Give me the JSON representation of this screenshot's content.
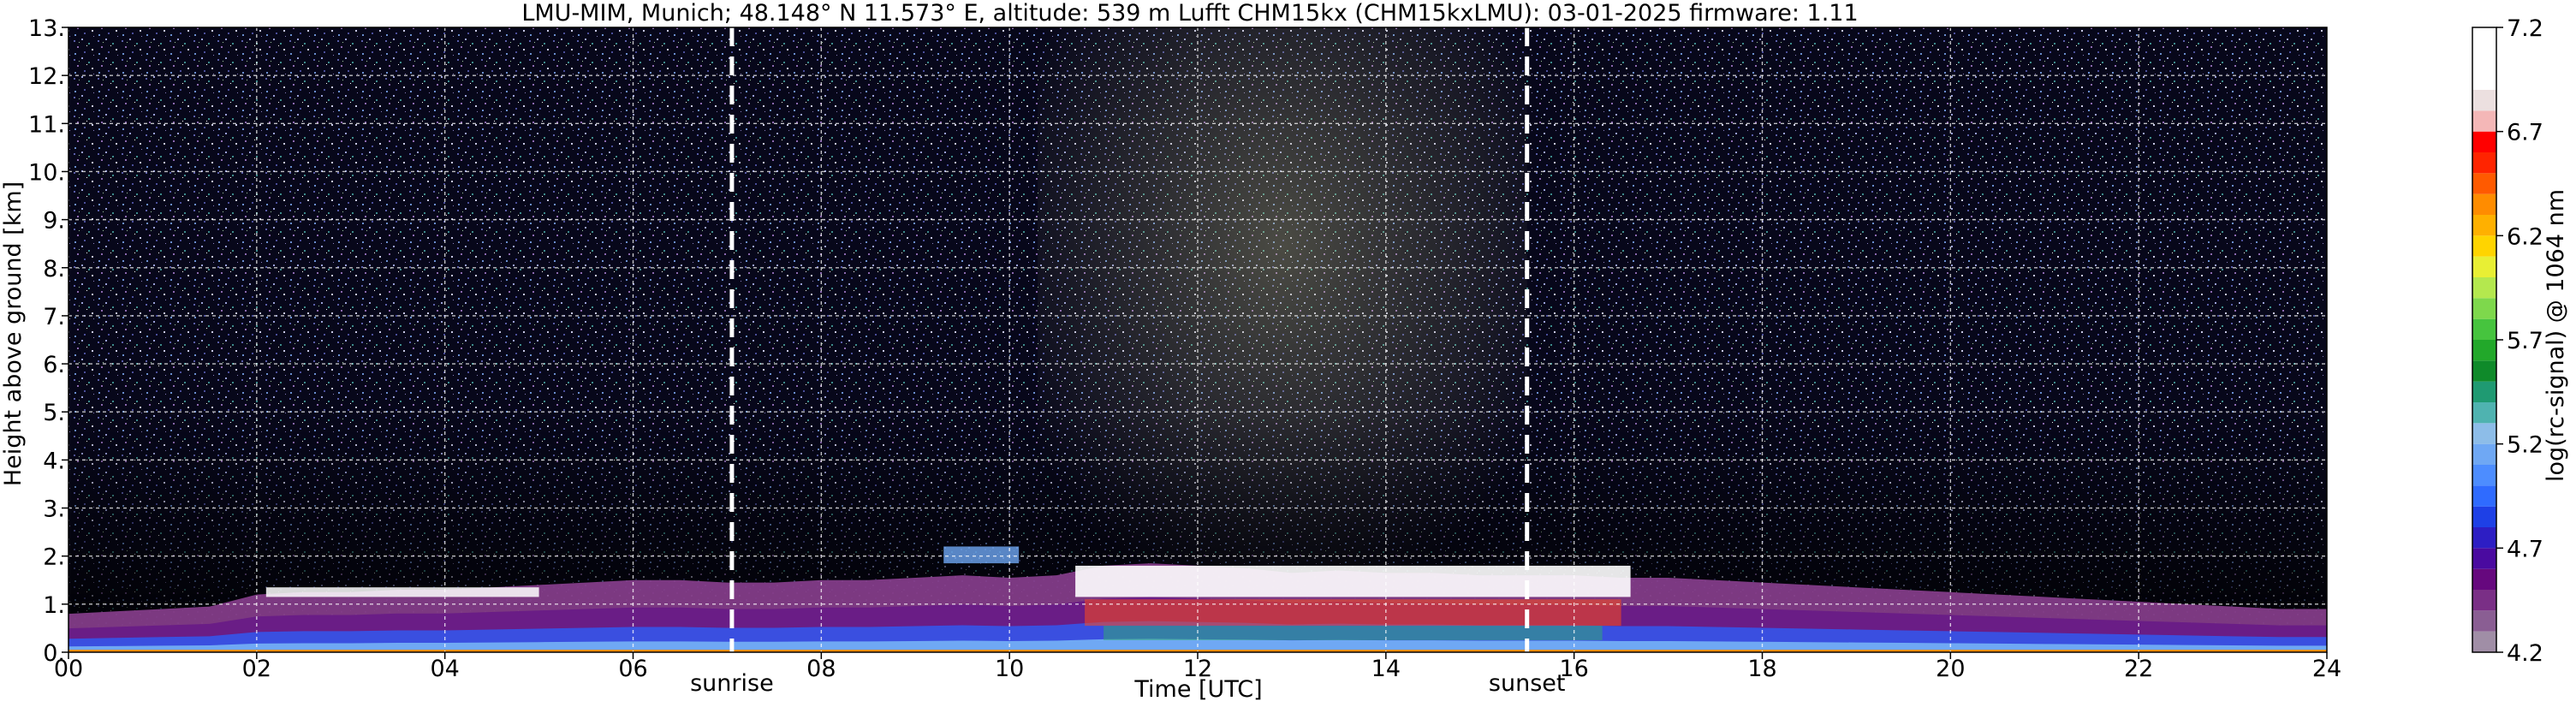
{
  "chart_data": {
    "type": "heatmap",
    "title": "LMU-MIM, Munich; 48.148° N 11.573° E, altitude: 539 m    Lufft CHM15kx (CHM15kxLMU): 03-01-2025    firmware: 1.11",
    "xlabel": "Time [UTC]",
    "ylabel": "Height above ground [km]",
    "xlim": [
      0,
      24
    ],
    "ylim": [
      0,
      13
    ],
    "x_ticks": [
      0,
      2,
      4,
      6,
      8,
      10,
      12,
      14,
      16,
      18,
      20,
      22,
      24
    ],
    "x_tick_labels": [
      "00",
      "02",
      "04",
      "06",
      "08",
      "10",
      "12",
      "14",
      "16",
      "18",
      "20",
      "22",
      "24"
    ],
    "y_ticks": [
      0,
      1,
      2,
      3,
      4,
      5,
      6,
      7,
      8,
      9,
      10,
      11,
      12,
      13
    ],
    "y_tick_labels": [
      "0.",
      "1.",
      "2.",
      "3.",
      "4.",
      "5.",
      "6.",
      "7.",
      "8.",
      "9.",
      "10.",
      "11.",
      "12.",
      "13."
    ],
    "grid": true,
    "markers": [
      {
        "label": "sunrise",
        "x": 7.05
      },
      {
        "label": "sunset",
        "x": 15.5
      }
    ],
    "colorbar": {
      "label": "log(rc-signal) @ 1064 nm",
      "range": [
        4.2,
        7.2
      ],
      "tick_values": [
        4.2,
        4.7,
        5.2,
        5.7,
        6.2,
        6.7,
        7.2
      ],
      "tick_labels": [
        "4.2",
        "4.7",
        "5.2",
        "5.7",
        "6.2",
        "6.7",
        "7.2"
      ],
      "colors": [
        "#a08ea6",
        "#8a5e93",
        "#7a2f86",
        "#66087e",
        "#4a0aa0",
        "#2d1ec4",
        "#1e40e6",
        "#2f6bff",
        "#4d8dff",
        "#6fa8f4",
        "#8dbde8",
        "#4fb3b0",
        "#1f9a72",
        "#0f8a2a",
        "#22a82a",
        "#46c43e",
        "#7ed84c",
        "#b4e84e",
        "#e8ef34",
        "#ffd400",
        "#ffb000",
        "#ff8c00",
        "#ff5a00",
        "#ff2400",
        "#ff0000",
        "#f4b7b7",
        "#ece0e0",
        "#ffffff"
      ],
      "band_edges": [
        4.2,
        4.3,
        4.4,
        4.5,
        4.6,
        4.7,
        4.8,
        4.9,
        5.0,
        5.1,
        5.2,
        5.3,
        5.4,
        5.5,
        5.6,
        5.7,
        5.8,
        5.9,
        6.0,
        6.1,
        6.2,
        6.3,
        6.4,
        6.5,
        6.6,
        6.7,
        6.8,
        6.9,
        7.2
      ]
    },
    "series": [
      {
        "x": [
          0,
          0.5,
          1,
          1.5,
          2,
          2.5,
          3,
          3.5,
          4,
          4.5,
          5,
          5.5,
          6,
          6.5,
          7,
          7.5,
          8,
          8.5,
          9,
          9.5,
          10,
          10.5,
          11,
          11.5,
          12,
          12.5,
          13,
          13.5,
          14,
          14.5,
          15,
          15.5,
          16,
          16.5,
          17,
          17.5,
          18,
          18.5,
          19,
          19.5,
          20,
          20.5,
          21,
          21.5,
          22,
          22.5,
          23,
          23.5,
          24
        ],
        "values": [
          0.8,
          0.85,
          0.9,
          0.95,
          1.2,
          1.25,
          1.25,
          1.3,
          1.3,
          1.35,
          1.4,
          1.45,
          1.5,
          1.5,
          1.45,
          1.45,
          1.5,
          1.5,
          1.55,
          1.6,
          1.55,
          1.6,
          1.8,
          1.85,
          1.8,
          1.75,
          1.65,
          1.7,
          1.65,
          1.65,
          1.6,
          1.6,
          1.6,
          1.55,
          1.55,
          1.5,
          1.45,
          1.4,
          1.35,
          1.3,
          1.25,
          1.2,
          1.15,
          1.1,
          1.05,
          1.0,
          0.95,
          0.9,
          0.9
        ]
      }
    ]
  }
}
